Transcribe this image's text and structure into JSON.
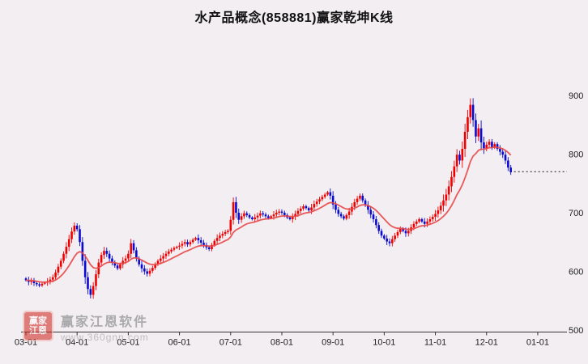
{
  "title": "水产品概念(858881)赢家乾坤K线",
  "watermark": {
    "name": "赢家江恩软件",
    "url": "www.360gnn.com",
    "logo_line1": "赢家",
    "logo_line2": "江恩"
  },
  "chart_data": {
    "type": "candlestick",
    "title": "水产品概念(858881)赢家乾坤K线",
    "xlabel": "",
    "ylabel": "",
    "x_ticks": [
      "03-01",
      "04-01",
      "05-01",
      "06-01",
      "07-01",
      "08-01",
      "09-01",
      "10-01",
      "11-01",
      "12-01",
      "01-01"
    ],
    "candles_per_month": 19,
    "y_ticks": [
      500,
      600,
      700,
      800,
      900
    ],
    "ylim": [
      500,
      900
    ],
    "grid": false,
    "legend": "none",
    "closes": [
      585,
      582,
      584,
      580,
      578,
      576,
      579,
      581,
      583,
      586,
      590,
      598,
      608,
      618,
      630,
      642,
      655,
      668,
      678,
      672,
      650,
      618,
      590,
      570,
      560,
      575,
      595,
      615,
      628,
      635,
      630,
      622,
      615,
      610,
      605,
      612,
      618,
      622,
      630,
      648,
      636,
      622,
      612,
      605,
      600,
      596,
      601,
      606,
      612,
      618,
      622,
      626,
      630,
      634,
      637,
      640,
      642,
      644,
      647,
      650,
      646,
      650,
      654,
      657,
      653,
      649,
      645,
      641,
      638,
      645,
      652,
      657,
      661,
      664,
      667,
      669,
      688,
      718,
      700,
      688,
      694,
      699,
      696,
      692,
      689,
      692,
      695,
      699,
      697,
      694,
      691,
      694,
      697,
      700,
      702,
      700,
      696,
      692,
      689,
      693,
      698,
      703,
      707,
      711,
      708,
      704,
      709,
      715,
      719,
      723,
      727,
      731,
      735,
      729,
      714,
      705,
      698,
      694,
      690,
      696,
      702,
      710,
      718,
      724,
      729,
      721,
      713,
      705,
      697,
      689,
      679,
      669,
      661,
      656,
      651,
      648,
      655,
      661,
      667,
      673,
      669,
      665,
      669,
      675,
      681,
      685,
      689,
      685,
      681,
      685,
      689,
      693,
      698,
      704,
      712,
      721,
      731,
      745,
      761,
      779,
      799,
      789,
      809,
      838,
      863,
      884,
      858,
      830,
      844,
      820,
      810,
      816,
      821,
      812,
      817,
      809,
      804,
      799,
      789,
      777,
      769
    ],
    "last_price_line": 770,
    "ma_line": {
      "type": "ema",
      "alpha": 0.13
    },
    "colors": {
      "up": "#f20000",
      "down": "#0b0bd0",
      "ma": "#e84848",
      "axis": "#333333",
      "tick_label": "#222222",
      "dashed_line": "#111111",
      "background": "#f2eef2",
      "title": "#111111"
    }
  }
}
